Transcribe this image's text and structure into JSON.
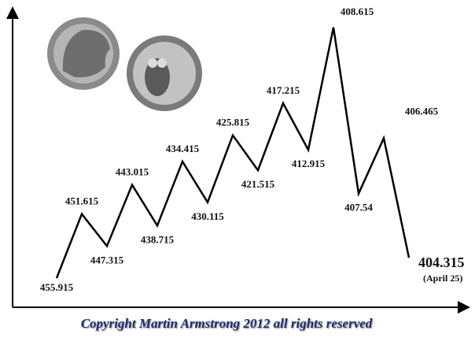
{
  "chart_data": {
    "type": "line",
    "x": [
      "455.915",
      "451.615",
      "447.315",
      "443.015",
      "438.715",
      "434.415",
      "430.115",
      "425.815",
      "421.515",
      "417.215",
      "412.915",
      "408.615",
      "407.54",
      "406.465",
      "404.315"
    ],
    "values": [
      10,
      32,
      21,
      42,
      28,
      50,
      36,
      59,
      47,
      70,
      54,
      96,
      39,
      58,
      17
    ],
    "ylim": [
      0,
      100
    ],
    "color": "#000000",
    "annotation": "(April 25)",
    "footer": "Copyright Martin Armstrong 2012 all rights reserved"
  }
}
